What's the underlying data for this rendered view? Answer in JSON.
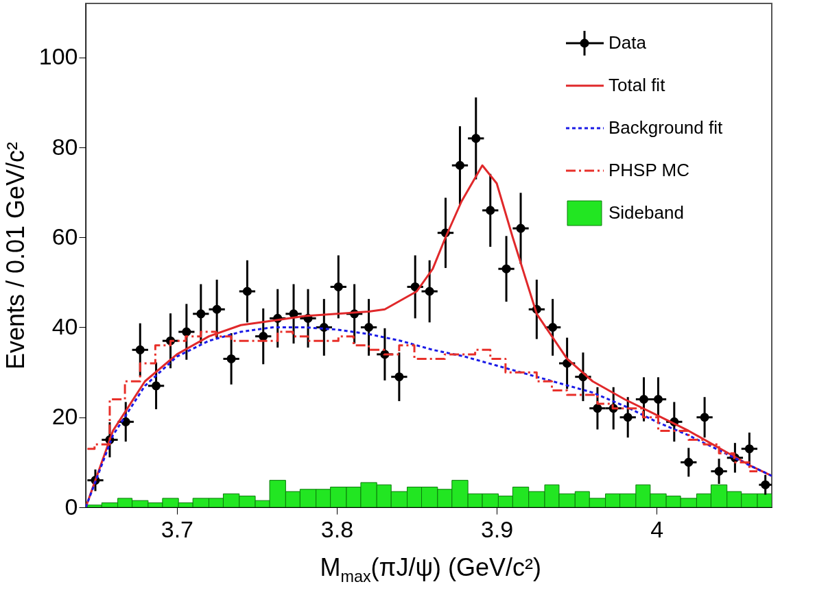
{
  "chart_data": {
    "type": "scatter",
    "xlabel": "M$_{max}$(πJ/ψ) (GeV/c²)",
    "ylabel": "Events / 0.01 GeV/c²",
    "xlim": [
      3.643,
      4.072
    ],
    "ylim": [
      0,
      112
    ],
    "xticks": [
      3.7,
      3.8,
      3.9,
      4
    ],
    "yticks": [
      0,
      20,
      40,
      60,
      80,
      100
    ],
    "legend": "top right",
    "series": [
      {
        "name": "Data",
        "color": "#000000",
        "marker": "circle",
        "x": [
          3.649,
          3.658,
          3.668,
          3.677,
          3.687,
          3.696,
          3.706,
          3.715,
          3.725,
          3.734,
          3.744,
          3.754,
          3.763,
          3.773,
          3.782,
          3.792,
          3.801,
          3.811,
          3.82,
          3.83,
          3.839,
          3.849,
          3.858,
          3.868,
          3.877,
          3.887,
          3.896,
          3.906,
          3.915,
          3.925,
          3.935,
          3.944,
          3.954,
          3.963,
          3.973,
          3.982,
          3.992,
          4.001,
          4.011,
          4.02,
          4.03,
          4.039,
          4.049,
          4.058,
          4.068
        ],
        "values": [
          6,
          15,
          19,
          35,
          27,
          37,
          39,
          43,
          44,
          33,
          48,
          38,
          42,
          43,
          42,
          40,
          49,
          43,
          40,
          34,
          29,
          49,
          48,
          61,
          76,
          82,
          66,
          53,
          62,
          44,
          40,
          32,
          29,
          22,
          22,
          20,
          24,
          24,
          19,
          10,
          20,
          8,
          11,
          13,
          5
        ],
        "errors": [
          2.4,
          3.9,
          4.4,
          5.9,
          5.2,
          6.1,
          6.2,
          6.6,
          6.6,
          5.7,
          6.9,
          6.2,
          6.5,
          6.6,
          6.5,
          6.3,
          7,
          6.6,
          6.3,
          5.8,
          5.4,
          7,
          6.9,
          7.8,
          8.7,
          9.1,
          8.1,
          7.3,
          7.9,
          6.6,
          6.3,
          5.7,
          5.4,
          4.7,
          4.7,
          4.5,
          4.9,
          4.9,
          4.4,
          3.2,
          4.5,
          2.8,
          3.3,
          3.6,
          2.2
        ],
        "xerrors": [
          0.005,
          0.005,
          0.005,
          0.005,
          0.005,
          0.005,
          0.005,
          0.005,
          0.005,
          0.005,
          0.005,
          0.005,
          0.005,
          0.005,
          0.005,
          0.005,
          0.005,
          0.005,
          0.005,
          0.005,
          0.005,
          0.005,
          0.005,
          0.005,
          0.005,
          0.005,
          0.005,
          0.005,
          0.005,
          0.005,
          0.005,
          0.005,
          0.005,
          0.005,
          0.005,
          0.005,
          0.005,
          0.005,
          0.005,
          0.005,
          0.005,
          0.005,
          0.005,
          0.005,
          0.004
        ]
      },
      {
        "name": "Total fit",
        "type": "line",
        "color": "#e0282a",
        "line_style": "solid",
        "x": [
          3.643,
          3.66,
          3.68,
          3.7,
          3.72,
          3.74,
          3.76,
          3.78,
          3.8,
          3.82,
          3.83,
          3.85,
          3.86,
          3.868,
          3.878,
          3.891,
          3.9,
          3.91,
          3.925,
          3.944,
          3.96,
          3.98,
          4.0,
          4.02,
          4.04,
          4.06,
          4.072
        ],
        "values": [
          0,
          17,
          28,
          34,
          38,
          40.5,
          41.5,
          42.5,
          43,
          43.5,
          44,
          48,
          53,
          60,
          68,
          76,
          72,
          60,
          43,
          33,
          28,
          24,
          20.5,
          17,
          13,
          9,
          7
        ]
      },
      {
        "name": "Background fit",
        "type": "line",
        "color": "#1a1ae6",
        "line_style": "dotted",
        "x": [
          3.643,
          3.66,
          3.68,
          3.7,
          3.72,
          3.74,
          3.76,
          3.78,
          3.8,
          3.82,
          3.84,
          3.86,
          3.88,
          3.9,
          3.92,
          3.94,
          3.96,
          3.98,
          4.0,
          4.02,
          4.04,
          4.06,
          4.072
        ],
        "values": [
          0,
          16,
          27,
          33.5,
          37,
          39,
          40,
          40,
          39.5,
          38.5,
          37,
          35,
          33.5,
          31.5,
          29.5,
          27.5,
          25.5,
          22.5,
          19,
          16,
          12.5,
          9,
          7
        ]
      },
      {
        "name": "PHSP MC",
        "type": "step",
        "color": "#e8302a",
        "line_style": "dashed",
        "x": [
          3.644,
          3.653,
          3.663,
          3.672,
          3.682,
          3.691,
          3.701,
          3.71,
          3.72,
          3.729,
          3.739,
          3.749,
          3.758,
          3.768,
          3.777,
          3.787,
          3.796,
          3.806,
          3.815,
          3.825,
          3.834,
          3.844,
          3.853,
          3.863,
          3.872,
          3.882,
          3.891,
          3.901,
          3.91,
          3.92,
          3.93,
          3.939,
          3.949,
          3.958,
          3.968,
          3.977,
          3.987,
          3.996,
          4.006,
          4.015,
          4.025,
          4.034,
          4.044,
          4.053,
          4.063
        ],
        "values": [
          13,
          14,
          24,
          28,
          32,
          36,
          37,
          38,
          39,
          38,
          37,
          37,
          37,
          39,
          38,
          37,
          37,
          38,
          36,
          35,
          34,
          36,
          33,
          33,
          34,
          34,
          35,
          33,
          30,
          30,
          28,
          26,
          25,
          25,
          23,
          22,
          22,
          20,
          17,
          17,
          15,
          14,
          12,
          10,
          8
        ]
      },
      {
        "name": "Sideband",
        "type": "histogram",
        "color": "#22e622",
        "bins": [
          3.644,
          3.653,
          3.663,
          3.672,
          3.682,
          3.691,
          3.701,
          3.71,
          3.72,
          3.729,
          3.739,
          3.749,
          3.758,
          3.768,
          3.777,
          3.787,
          3.796,
          3.806,
          3.815,
          3.825,
          3.834,
          3.844,
          3.853,
          3.863,
          3.872,
          3.882,
          3.891,
          3.901,
          3.91,
          3.92,
          3.93,
          3.939,
          3.949,
          3.958,
          3.968,
          3.977,
          3.987,
          3.996,
          4.006,
          4.015,
          4.025,
          4.034,
          4.044,
          4.053,
          4.063,
          4.072
        ],
        "values": [
          0.5,
          1,
          2,
          1.5,
          1,
          2,
          1,
          2,
          2,
          3,
          2.5,
          1.5,
          6,
          3.5,
          4,
          4,
          4.5,
          4.5,
          5.5,
          5,
          3.5,
          4.5,
          4.5,
          4,
          6,
          3,
          3,
          2.5,
          4.5,
          3.5,
          5,
          3,
          3.5,
          2,
          3,
          3,
          5,
          3,
          2.5,
          2,
          3,
          5,
          3.5,
          3,
          3
        ]
      }
    ]
  }
}
